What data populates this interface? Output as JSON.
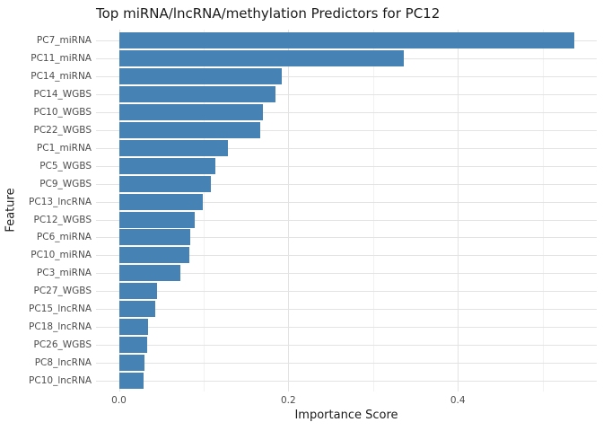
{
  "chart_data": {
    "type": "bar",
    "orientation": "horizontal",
    "title": "Top miRNA/lncRNA/methylation Predictors for PC12",
    "xlabel": "Importance Score",
    "ylabel": "Feature",
    "sorted": "descending",
    "categories": [
      "PC7_miRNA",
      "PC11_miRNA",
      "PC14_miRNA",
      "PC14_WGBS",
      "PC10_WGBS",
      "PC22_WGBS",
      "PC1_miRNA",
      "PC5_WGBS",
      "PC9_WGBS",
      "PC13_lncRNA",
      "PC12_WGBS",
      "PC6_miRNA",
      "PC10_miRNA",
      "PC3_miRNA",
      "PC27_WGBS",
      "PC15_lncRNA",
      "PC18_lncRNA",
      "PC26_WGBS",
      "PC8_lncRNA",
      "PC10_lncRNA"
    ],
    "values": [
      0.537,
      0.336,
      0.192,
      0.185,
      0.17,
      0.167,
      0.129,
      0.114,
      0.109,
      0.099,
      0.089,
      0.084,
      0.083,
      0.073,
      0.045,
      0.043,
      0.034,
      0.033,
      0.03,
      0.029
    ],
    "xlim": [
      -0.027,
      0.564
    ],
    "x_major_ticks": [
      0.0,
      0.2,
      0.4
    ],
    "x_tick_labels": [
      "0.0",
      "0.2",
      "0.4"
    ],
    "x_minor_gridlines": [
      0.1,
      0.3,
      0.5
    ],
    "grid": true,
    "legend": "none"
  },
  "colors": {
    "bar": "#4682B4",
    "grid_major": "#E3E3E3",
    "grid_minor": "#F1F1F1",
    "tick_label": "#4D4D4D",
    "text": "#1A1A1A",
    "background": "#FFFFFF"
  }
}
